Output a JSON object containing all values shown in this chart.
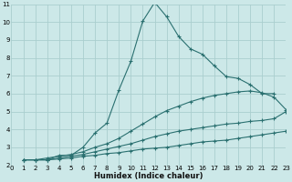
{
  "xlabel": "Humidex (Indice chaleur)",
  "bg_color": "#cce8e8",
  "grid_color": "#aacece",
  "line_color": "#2a7070",
  "xmin": 0,
  "xmax": 23,
  "ymin": 2,
  "ymax": 11,
  "lines": [
    {
      "x": [
        1,
        2,
        3,
        4,
        5,
        6,
        7,
        8,
        9,
        10,
        11,
        12,
        13,
        14,
        15,
        16,
        17,
        18,
        19,
        20,
        21,
        22
      ],
      "y": [
        2.3,
        2.3,
        2.3,
        2.55,
        2.55,
        3.0,
        3.8,
        4.35,
        6.2,
        7.8,
        10.05,
        11.1,
        10.3,
        9.2,
        8.5,
        8.2,
        7.55,
        6.95,
        6.85,
        6.5,
        6.0,
        6.0
      ]
    },
    {
      "x": [
        1,
        2,
        3,
        4,
        5,
        6,
        7,
        8,
        9,
        10,
        11,
        12,
        13,
        14,
        15,
        16,
        17,
        18,
        19,
        20,
        21,
        22,
        23
      ],
      "y": [
        2.3,
        2.3,
        2.4,
        2.5,
        2.6,
        2.75,
        3.0,
        3.2,
        3.5,
        3.9,
        4.3,
        4.7,
        5.05,
        5.3,
        5.55,
        5.75,
        5.9,
        6.0,
        6.1,
        6.15,
        6.05,
        5.8,
        5.1
      ]
    },
    {
      "x": [
        1,
        2,
        3,
        4,
        5,
        6,
        7,
        8,
        9,
        10,
        11,
        12,
        13,
        14,
        15,
        16,
        17,
        18,
        19,
        20,
        21,
        22,
        23
      ],
      "y": [
        2.3,
        2.3,
        2.3,
        2.4,
        2.5,
        2.6,
        2.75,
        2.9,
        3.05,
        3.2,
        3.4,
        3.6,
        3.75,
        3.9,
        4.0,
        4.1,
        4.2,
        4.3,
        4.35,
        4.45,
        4.5,
        4.6,
        5.0
      ]
    },
    {
      "x": [
        1,
        2,
        3,
        4,
        5,
        6,
        7,
        8,
        9,
        10,
        11,
        12,
        13,
        14,
        15,
        16,
        17,
        18,
        19,
        20,
        21,
        22,
        23
      ],
      "y": [
        2.3,
        2.3,
        2.3,
        2.35,
        2.4,
        2.5,
        2.55,
        2.65,
        2.7,
        2.8,
        2.9,
        2.95,
        3.0,
        3.1,
        3.2,
        3.3,
        3.35,
        3.4,
        3.5,
        3.6,
        3.7,
        3.8,
        3.9
      ]
    }
  ],
  "xlabel_fontsize": 6.0,
  "tick_fontsize": 5.0
}
